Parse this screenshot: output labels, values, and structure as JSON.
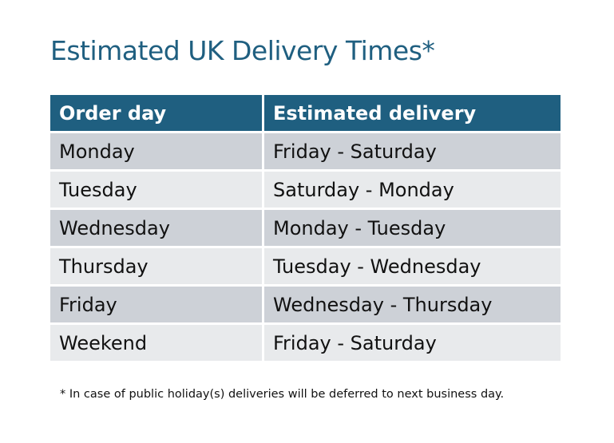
{
  "title": "Estimated UK Delivery Times*",
  "table": {
    "headers": [
      "Order day",
      "Estimated delivery"
    ],
    "rows": [
      [
        "Monday",
        "Friday - Saturday"
      ],
      [
        "Tuesday",
        "Saturday - Monday"
      ],
      [
        "Wednesday",
        "Monday - Tuesday"
      ],
      [
        "Thursday",
        "Tuesday - Wednesday"
      ],
      [
        "Friday",
        "Wednesday - Thursday"
      ],
      [
        "Weekend",
        "Friday - Saturday"
      ]
    ]
  },
  "footnote": "* In case of public holiday(s) deliveries will be deferred to next business day.",
  "colors": {
    "header": "#1f5f80",
    "title": "#1f5f80",
    "row_odd": "#cdd1d7",
    "row_even": "#e8eaec"
  }
}
